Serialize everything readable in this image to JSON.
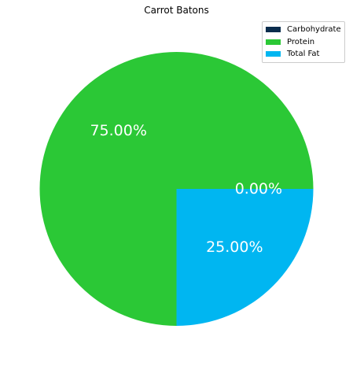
{
  "chart_data": {
    "type": "pie",
    "title": "Carrot Batons",
    "legend_position": "top-right",
    "slices": [
      {
        "label": "Carbohydrate",
        "value": 0.0,
        "pct_label": "0.00%",
        "color": "#0a2d4d"
      },
      {
        "label": "Protein",
        "value": 75.0,
        "pct_label": "75.00%",
        "color": "#2bc836"
      },
      {
        "label": "Total Fat",
        "value": 25.0,
        "pct_label": "25.00%",
        "color": "#00b6f1"
      }
    ]
  }
}
